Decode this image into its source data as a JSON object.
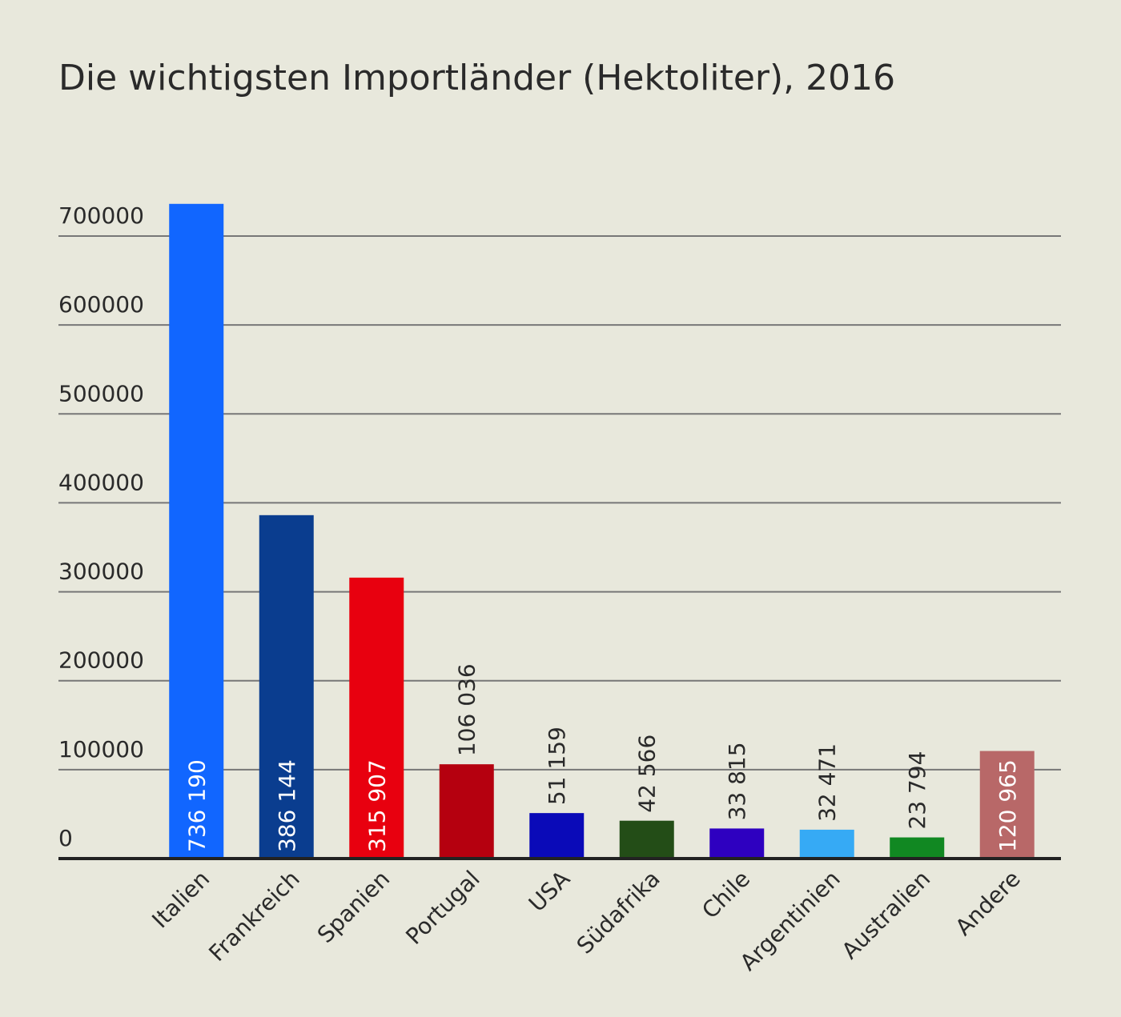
{
  "chart_data": {
    "type": "bar",
    "title": "Die wichtigsten Importländer (Hektoliter), 2016",
    "categories": [
      "Italien",
      "Frankreich",
      "Spanien",
      "Portugal",
      "USA",
      "Südafrika",
      "Chile",
      "Argentinien",
      "Australien",
      "Andere"
    ],
    "values": [
      736190,
      386144,
      315907,
      106036,
      51159,
      42566,
      33815,
      32471,
      23794,
      120965
    ],
    "value_labels": [
      "736 190",
      "386 144",
      "315 907",
      "106 036",
      "51 159",
      "42 566",
      "33 815",
      "32 471",
      "23 794",
      "120 965"
    ],
    "colors": [
      "#1166ff",
      "#0a3d8f",
      "#e8000f",
      "#b5000f",
      "#0a0ab8",
      "#234d17",
      "#2e00c0",
      "#36aaf5",
      "#118822",
      "#b86868"
    ],
    "ylim": [
      0,
      700000
    ],
    "yticks": [
      0,
      100000,
      200000,
      300000,
      400000,
      500000,
      600000,
      700000
    ],
    "grid": true
  }
}
